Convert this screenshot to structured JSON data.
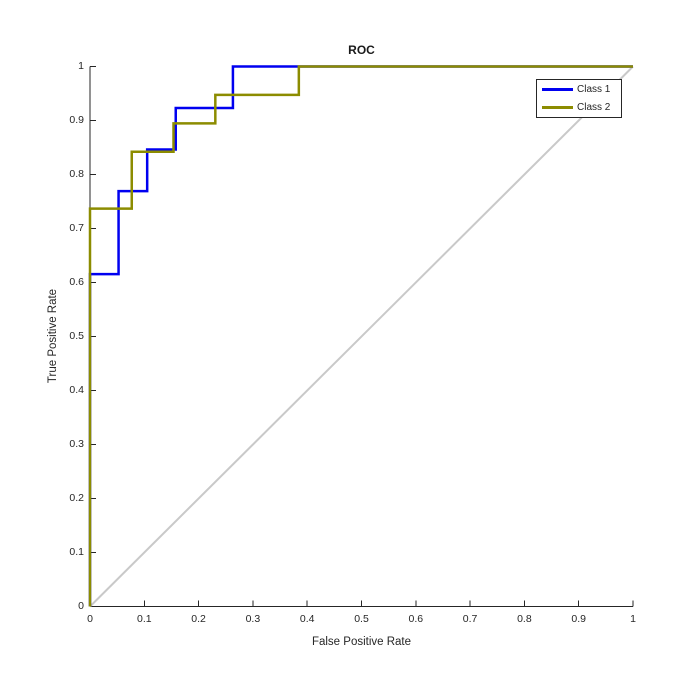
{
  "figure": {
    "background": "#ffffff",
    "text_color": "#262626"
  },
  "chart_data": {
    "type": "line",
    "subtype": "roc-step-curves",
    "title": "ROC",
    "xlabel": "False Positive Rate",
    "ylabel": "True Positive Rate",
    "xlim": [
      0,
      1
    ],
    "ylim": [
      0,
      1
    ],
    "grid": false,
    "box": false,
    "axis_color": "#262626",
    "xtick_values": [
      0,
      0.1,
      0.2,
      0.3,
      0.4,
      0.5,
      0.6,
      0.7,
      0.8,
      0.9,
      1
    ],
    "xtick_labels": [
      "0",
      "0.1",
      "0.2",
      "0.3",
      "0.4",
      "0.5",
      "0.6",
      "0.7",
      "0.8",
      "0.9",
      "1"
    ],
    "ytick_values": [
      0,
      0.1,
      0.2,
      0.3,
      0.4,
      0.5,
      0.6,
      0.7,
      0.8,
      0.9,
      1
    ],
    "ytick_labels": [
      "0",
      "0.1",
      "0.2",
      "0.3",
      "0.4",
      "0.5",
      "0.6",
      "0.7",
      "0.8",
      "0.9",
      "1"
    ],
    "legend": {
      "position": "top-right",
      "border_color": "#262626",
      "items": [
        "Class 1",
        "Class 2"
      ]
    },
    "reference_line": {
      "from": [
        0,
        0
      ],
      "to": [
        1,
        1
      ],
      "color": "#c9c9c9",
      "width": 2
    },
    "series": [
      {
        "name": "Class 1",
        "color": "#0000f0",
        "line_width": 2.5,
        "x": [
          0,
          0,
          0.0526,
          0.0526,
          0.1053,
          0.1053,
          0.1579,
          0.1579,
          0.2632,
          0.2632,
          1
        ],
        "y": [
          0,
          0.6154,
          0.6154,
          0.7692,
          0.7692,
          0.8462,
          0.8462,
          0.9231,
          0.9231,
          1,
          1
        ]
      },
      {
        "name": "Class 2",
        "color": "#8c8c00",
        "line_width": 2.5,
        "x": [
          0,
          0,
          0.0769,
          0.0769,
          0.1538,
          0.1538,
          0.2308,
          0.2308,
          0.3846,
          0.3846,
          1
        ],
        "y": [
          0,
          0.7368,
          0.7368,
          0.8421,
          0.8421,
          0.8947,
          0.8947,
          0.9474,
          0.9474,
          1,
          1
        ]
      }
    ]
  }
}
